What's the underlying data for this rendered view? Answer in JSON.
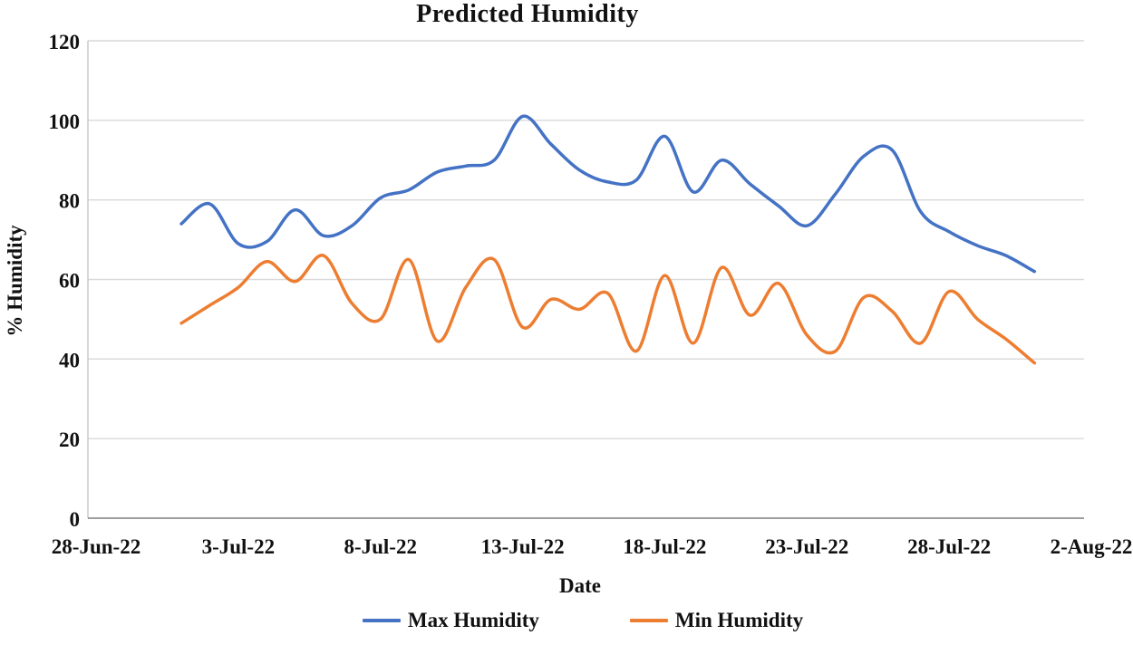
{
  "figure": {
    "title": "Predicted Humidity"
  },
  "axes": {
    "x_title": "Date",
    "y_title": "% Humidity",
    "x_tick_labels": [
      "28-Jun-22",
      "3-Jul-22",
      "8-Jul-22",
      "13-Jul-22",
      "18-Jul-22",
      "23-Jul-22",
      "28-Jul-22",
      "2-Aug-22"
    ],
    "y_ticks": [
      0,
      20,
      40,
      60,
      80,
      100,
      120
    ]
  },
  "legend": {
    "items": [
      {
        "label": "Max Humidity",
        "color": "#4472C4"
      },
      {
        "label": "Min Humidity",
        "color": "#ED7D31"
      }
    ]
  },
  "colors": {
    "max_series": "#4472C4",
    "min_series": "#ED7D31",
    "gridline": "#D9D9D9",
    "left_axis": "#C6C6C6",
    "bottom_axis": "#7F7F7F",
    "text": "#111111"
  },
  "chart_data": {
    "type": "line",
    "title": "Predicted Humidity",
    "xlabel": "Date",
    "ylabel": "% Humidity",
    "ylim": [
      0,
      120
    ],
    "x_axis_range": [
      "28-Jun-22",
      "2-Aug-22"
    ],
    "x_tick_labels": [
      "28-Jun-22",
      "3-Jul-22",
      "8-Jul-22",
      "13-Jul-22",
      "18-Jul-22",
      "23-Jul-22",
      "28-Jul-22",
      "2-Aug-22"
    ],
    "y_ticks": [
      0,
      20,
      40,
      60,
      80,
      100,
      120
    ],
    "grid": "horizontal",
    "legend_position": "bottom",
    "line_style": "smooth",
    "dates": [
      "1-Jul-22",
      "2-Jul-22",
      "3-Jul-22",
      "4-Jul-22",
      "5-Jul-22",
      "6-Jul-22",
      "7-Jul-22",
      "8-Jul-22",
      "9-Jul-22",
      "10-Jul-22",
      "11-Jul-22",
      "12-Jul-22",
      "13-Jul-22",
      "14-Jul-22",
      "15-Jul-22",
      "16-Jul-22",
      "17-Jul-22",
      "18-Jul-22",
      "19-Jul-22",
      "20-Jul-22",
      "21-Jul-22",
      "22-Jul-22",
      "23-Jul-22",
      "24-Jul-22",
      "25-Jul-22",
      "26-Jul-22",
      "27-Jul-22",
      "28-Jul-22",
      "29-Jul-22",
      "30-Jul-22",
      "31-Jul-22"
    ],
    "series": [
      {
        "name": "Max Humidity",
        "color": "#4472C4",
        "values": [
          74,
          79,
          69,
          69.5,
          77.5,
          71,
          73.5,
          80.5,
          82.5,
          87,
          88.5,
          90,
          101,
          94,
          87.5,
          84.5,
          85,
          96,
          82,
          90,
          84,
          78.5,
          73.5,
          81.5,
          91,
          92.5,
          77,
          72,
          68.5,
          66,
          62
        ]
      },
      {
        "name": "Min Humidity",
        "color": "#ED7D31",
        "values": [
          49,
          53.5,
          58,
          64.5,
          59.5,
          66,
          54,
          50,
          65,
          44.5,
          58,
          65,
          48,
          55,
          52.5,
          56.5,
          42,
          61,
          44,
          63,
          51,
          59,
          46,
          42,
          55.5,
          52,
          44,
          57,
          50,
          45,
          39
        ]
      }
    ]
  }
}
